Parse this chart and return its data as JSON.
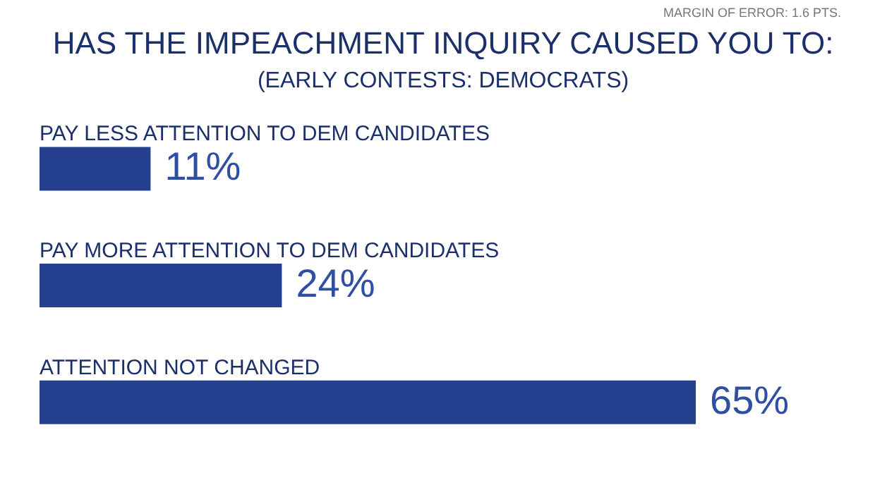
{
  "chart_data": {
    "type": "bar",
    "orientation": "horizontal",
    "title": "HAS THE IMPEACHMENT INQUIRY CAUSED YOU TO:",
    "subtitle": "(EARLY CONTESTS: DEMOCRATS)",
    "annotations": [
      "MARGIN OF ERROR: 1.6 PTS."
    ],
    "categories": [
      "PAY LESS  ATTENTION TO DEM CANDIDATES",
      "PAY MORE ATTENTION TO DEM CANDIDATES",
      "ATTENTION NOT CHANGED"
    ],
    "values": [
      11,
      24,
      65
    ],
    "value_labels": [
      "11%",
      "24%",
      "65%"
    ],
    "color": "#25408f"
  }
}
